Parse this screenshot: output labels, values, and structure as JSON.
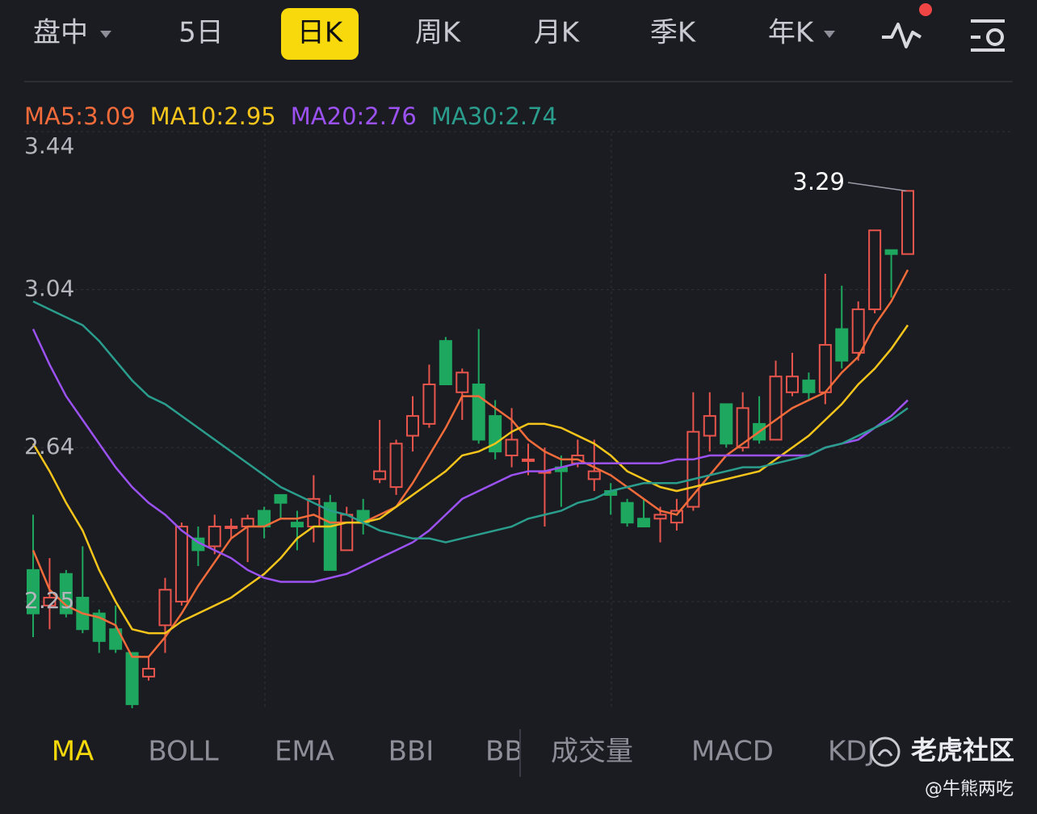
{
  "top_tabs": [
    "盘中",
    "5日",
    "日K",
    "周K",
    "月K",
    "季K",
    "年K"
  ],
  "chart_data": {
    "type": "candlestick",
    "ylim": [
      1.98,
      3.44
    ],
    "yticks": [
      3.44,
      3.04,
      2.64,
      2.25
    ],
    "grid": true,
    "up_color": "#e8554c",
    "down_color": "#1ea85f",
    "high_annotation": 3.29,
    "open": [
      2.33,
      2.24,
      2.32,
      2.26,
      2.22,
      2.18,
      2.12,
      2.06,
      2.19,
      2.25,
      2.41,
      2.39,
      2.44,
      2.44,
      2.48,
      2.52,
      2.45,
      2.44,
      2.5,
      2.38,
      2.48,
      2.56,
      2.54,
      2.67,
      2.7,
      2.91,
      2.78,
      2.8,
      2.72,
      2.62,
      2.61,
      2.58,
      2.59,
      2.6,
      2.56,
      2.53,
      2.5,
      2.46,
      2.46,
      2.45,
      2.49,
      2.67,
      2.75,
      2.64,
      2.7,
      2.66,
      2.78,
      2.81,
      2.78,
      2.94,
      2.88,
      2.99,
      3.14,
      3.13
    ],
    "high": [
      2.47,
      2.36,
      2.33,
      2.39,
      2.23,
      2.24,
      2.12,
      2.11,
      2.31,
      2.45,
      2.44,
      2.47,
      2.46,
      2.47,
      2.49,
      2.52,
      2.48,
      2.57,
      2.52,
      2.49,
      2.51,
      2.71,
      2.66,
      2.77,
      2.85,
      2.92,
      2.84,
      2.94,
      2.76,
      2.74,
      2.65,
      2.64,
      2.62,
      2.66,
      2.66,
      2.55,
      2.51,
      2.51,
      2.49,
      2.51,
      2.78,
      2.78,
      2.75,
      2.78,
      2.77,
      2.86,
      2.88,
      2.83,
      3.08,
      3.05,
      3.01,
      3.19,
      3.14,
      3.29
    ],
    "low": [
      2.16,
      2.18,
      2.21,
      2.17,
      2.12,
      2.12,
      1.98,
      2.05,
      2.12,
      2.24,
      2.34,
      2.37,
      2.41,
      2.35,
      2.41,
      2.46,
      2.38,
      2.4,
      2.33,
      2.38,
      2.42,
      2.55,
      2.52,
      2.63,
      2.69,
      2.8,
      2.71,
      2.65,
      2.61,
      2.59,
      2.57,
      2.44,
      2.49,
      2.59,
      2.53,
      2.47,
      2.44,
      2.44,
      2.4,
      2.43,
      2.48,
      2.63,
      2.64,
      2.63,
      2.65,
      2.66,
      2.77,
      2.76,
      2.75,
      2.84,
      2.86,
      2.98,
      3.02,
      3.13
    ],
    "close": [
      2.22,
      2.26,
      2.22,
      2.18,
      2.15,
      2.13,
      1.99,
      2.08,
      2.28,
      2.44,
      2.38,
      2.44,
      2.44,
      2.46,
      2.44,
      2.5,
      2.44,
      2.51,
      2.33,
      2.47,
      2.45,
      2.58,
      2.65,
      2.72,
      2.8,
      2.8,
      2.83,
      2.66,
      2.63,
      2.66,
      2.61,
      2.58,
      2.58,
      2.62,
      2.58,
      2.52,
      2.45,
      2.44,
      2.47,
      2.48,
      2.68,
      2.72,
      2.65,
      2.74,
      2.66,
      2.82,
      2.82,
      2.78,
      2.9,
      2.86,
      2.99,
      3.19,
      3.13,
      3.29
    ],
    "series": [
      {
        "name": "MA5:3.09",
        "color": "#f26b3a",
        "values": [
          2.38,
          2.28,
          2.24,
          2.22,
          2.21,
          2.19,
          2.11,
          2.11,
          2.16,
          2.22,
          2.29,
          2.35,
          2.41,
          2.44,
          2.44,
          2.46,
          2.46,
          2.47,
          2.45,
          2.45,
          2.45,
          2.47,
          2.49,
          2.55,
          2.62,
          2.69,
          2.77,
          2.77,
          2.74,
          2.71,
          2.66,
          2.63,
          2.61,
          2.61,
          2.59,
          2.57,
          2.54,
          2.51,
          2.48,
          2.47,
          2.52,
          2.57,
          2.62,
          2.65,
          2.68,
          2.71,
          2.74,
          2.76,
          2.78,
          2.83,
          2.87,
          2.95,
          3.01,
          3.09
        ]
      },
      {
        "name": "MA10:2.95",
        "color": "#f5c51b",
        "values": [
          2.65,
          2.58,
          2.5,
          2.43,
          2.33,
          2.25,
          2.18,
          2.17,
          2.17,
          2.2,
          2.22,
          2.24,
          2.26,
          2.29,
          2.32,
          2.36,
          2.41,
          2.44,
          2.44,
          2.45,
          2.45,
          2.46,
          2.49,
          2.52,
          2.55,
          2.58,
          2.62,
          2.63,
          2.65,
          2.68,
          2.7,
          2.7,
          2.69,
          2.67,
          2.65,
          2.62,
          2.58,
          2.56,
          2.54,
          2.53,
          2.54,
          2.55,
          2.56,
          2.57,
          2.58,
          2.61,
          2.64,
          2.67,
          2.71,
          2.75,
          2.8,
          2.84,
          2.89,
          2.95
        ]
      },
      {
        "name": "MA20:2.76",
        "color": "#9c52f2",
        "values": [
          2.94,
          2.85,
          2.77,
          2.71,
          2.65,
          2.59,
          2.54,
          2.5,
          2.47,
          2.43,
          2.4,
          2.38,
          2.36,
          2.33,
          2.31,
          2.3,
          2.3,
          2.3,
          2.31,
          2.32,
          2.34,
          2.36,
          2.38,
          2.4,
          2.43,
          2.47,
          2.51,
          2.53,
          2.55,
          2.57,
          2.58,
          2.58,
          2.59,
          2.6,
          2.6,
          2.6,
          2.6,
          2.6,
          2.6,
          2.61,
          2.61,
          2.62,
          2.62,
          2.62,
          2.62,
          2.62,
          2.62,
          2.62,
          2.64,
          2.65,
          2.66,
          2.69,
          2.72,
          2.76
        ]
      },
      {
        "name": "MA30:2.74",
        "color": "#2a9d8c",
        "values": [
          3.01,
          2.99,
          2.97,
          2.95,
          2.91,
          2.86,
          2.81,
          2.77,
          2.75,
          2.72,
          2.69,
          2.66,
          2.63,
          2.6,
          2.57,
          2.54,
          2.52,
          2.5,
          2.48,
          2.47,
          2.45,
          2.43,
          2.42,
          2.41,
          2.41,
          2.4,
          2.41,
          2.42,
          2.43,
          2.44,
          2.46,
          2.47,
          2.48,
          2.5,
          2.51,
          2.53,
          2.54,
          2.55,
          2.55,
          2.55,
          2.56,
          2.57,
          2.58,
          2.59,
          2.59,
          2.6,
          2.61,
          2.62,
          2.64,
          2.65,
          2.67,
          2.69,
          2.71,
          2.74
        ]
      }
    ]
  },
  "indicator_tabs": [
    "MA",
    "BOLL",
    "EMA",
    "BBI",
    "BB"
  ],
  "sub_tabs": [
    "成交量",
    "MACD",
    "KDJ"
  ],
  "watermark": {
    "brand": "老虎社区",
    "author": "@牛熊两吃"
  }
}
